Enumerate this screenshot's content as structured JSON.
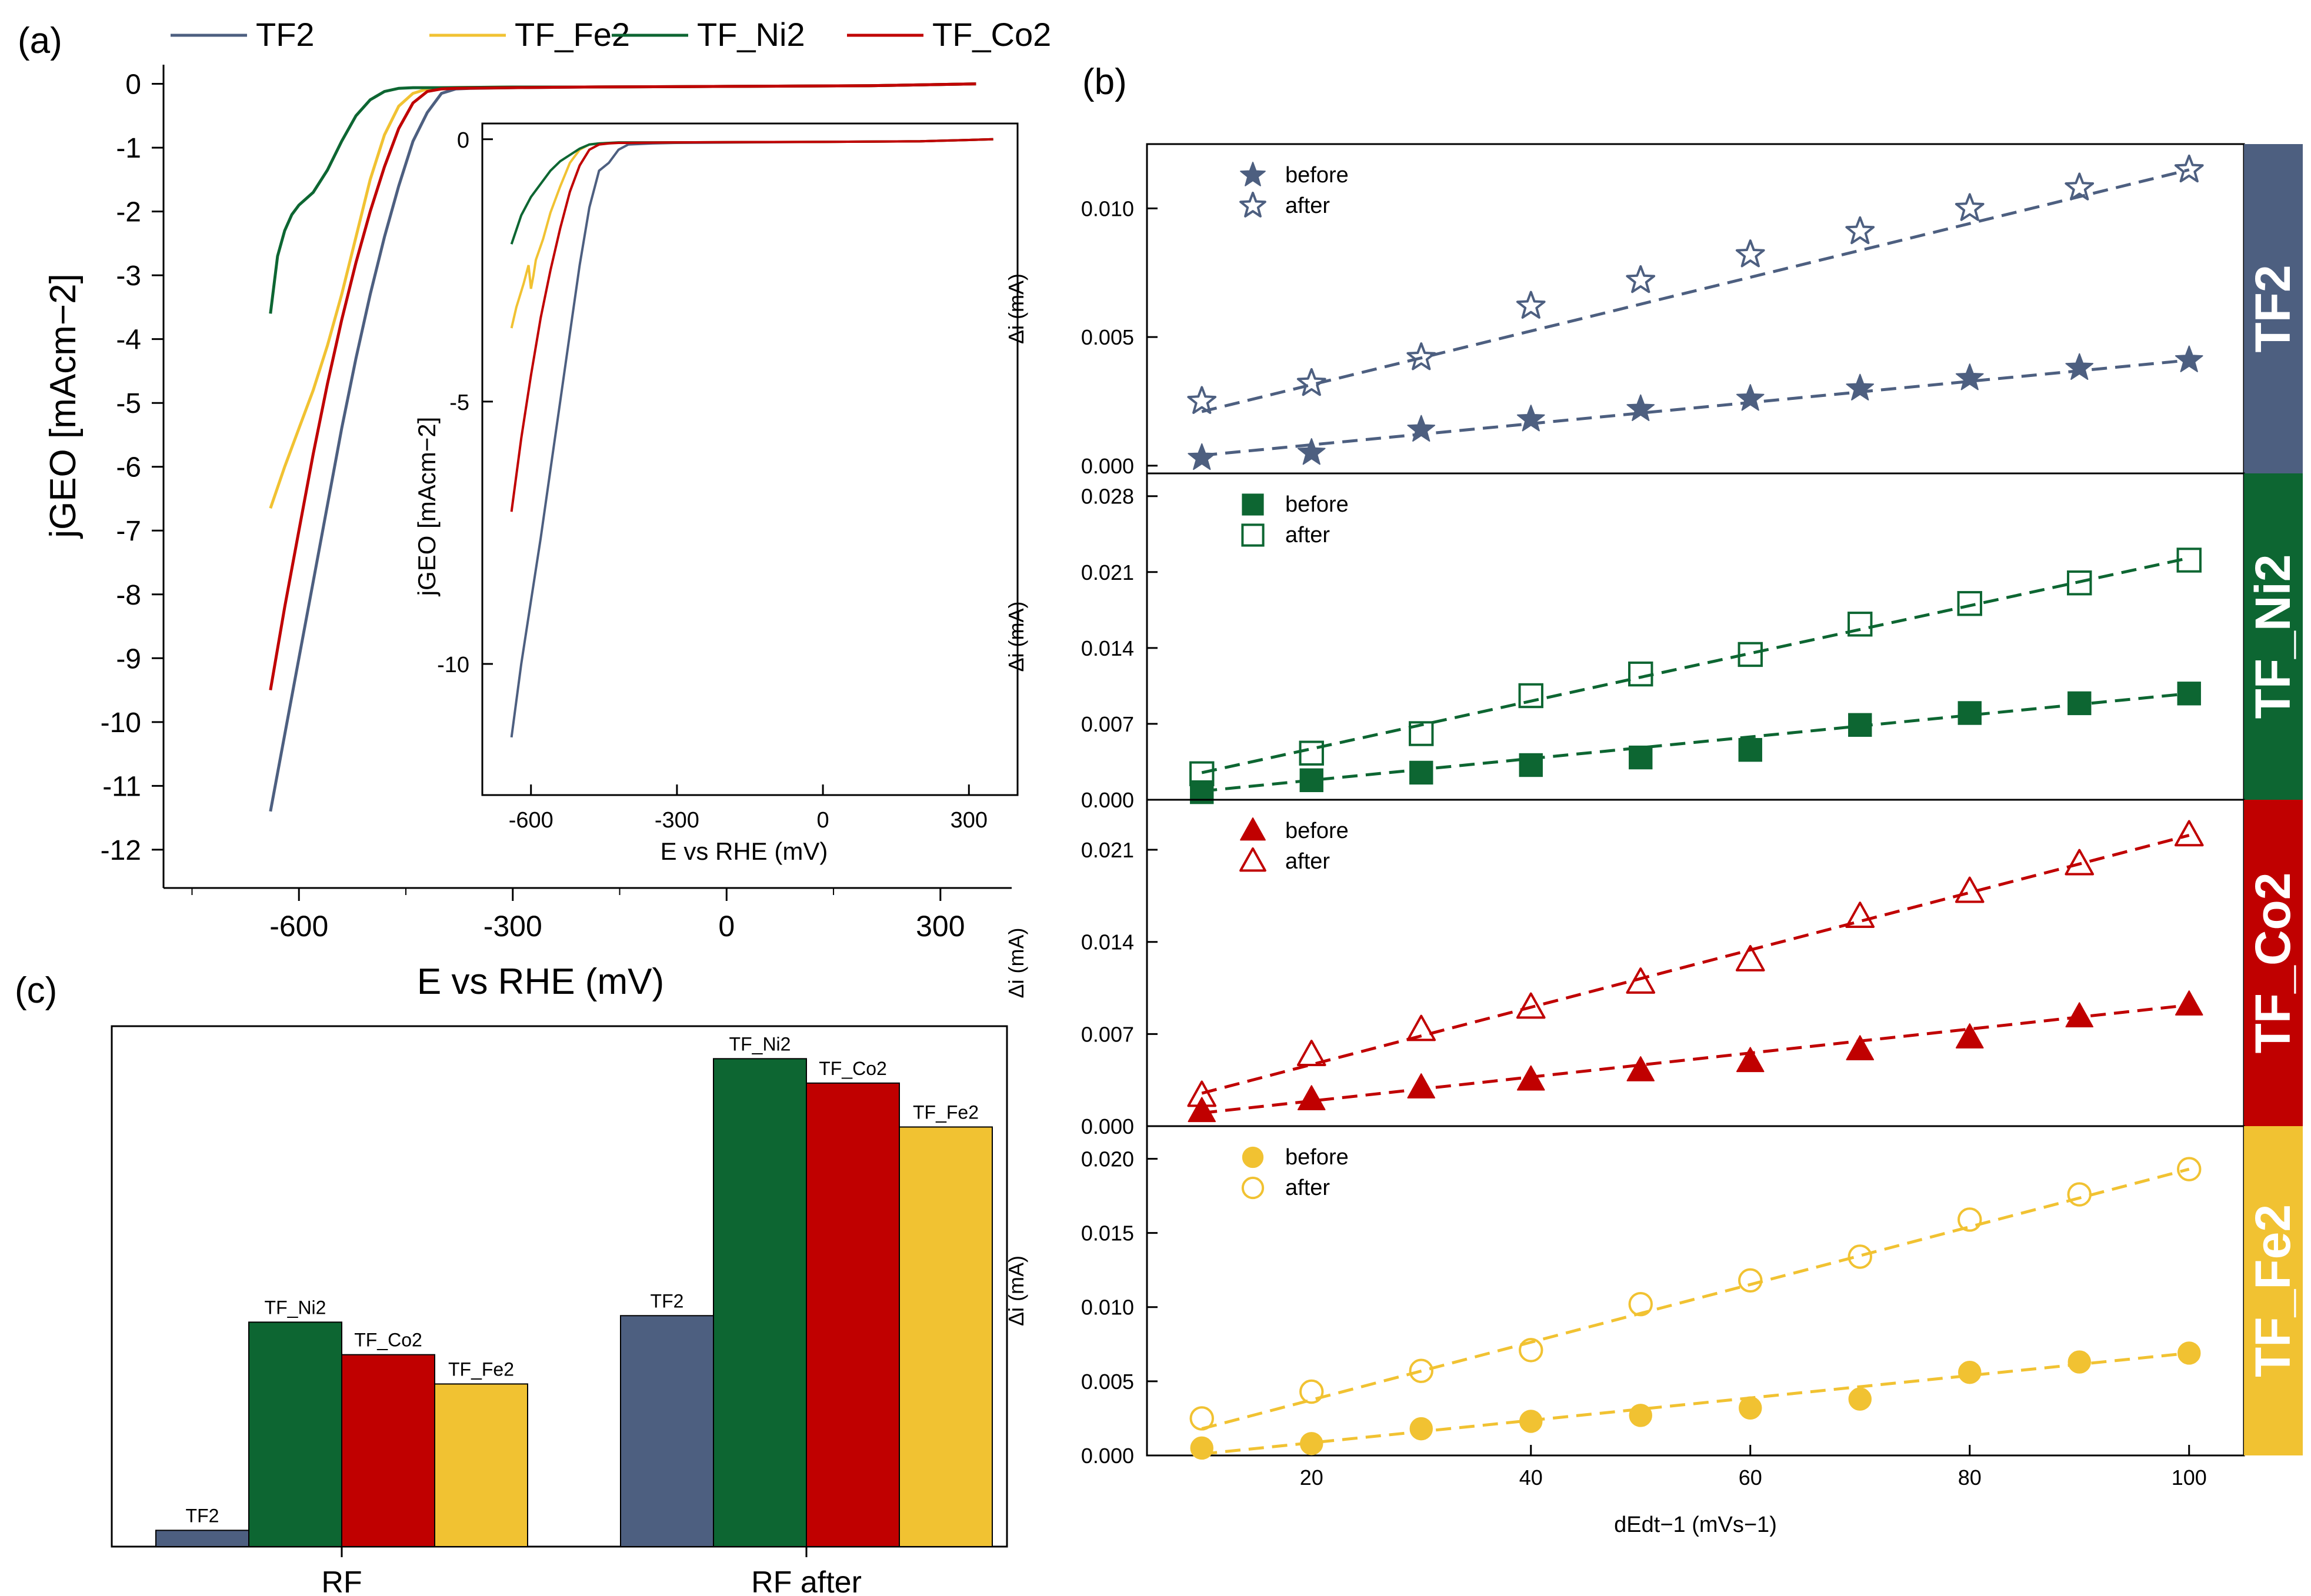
{
  "panel_labels": {
    "a": "(a)",
    "b": "(b)",
    "c": "(c)"
  },
  "colors": {
    "TF2": "#4d5f80",
    "TF_Fe2": "#f1c232",
    "TF_Ni2": "#0d6632",
    "TF_Co2": "#c00000"
  },
  "chart_data": [
    {
      "id": "a_main",
      "type": "line",
      "xlabel": "E vs RHE (mV)",
      "ylabel": "jGEO [mAcm−2]",
      "xlim": [
        -790,
        400
      ],
      "ylim": [
        -12.6,
        0.3
      ],
      "xticks": [
        -600,
        -300,
        0,
        300
      ],
      "yticks": [
        0,
        -1,
        -2,
        -3,
        -4,
        -5,
        -6,
        -7,
        -8,
        -9,
        -10,
        -11,
        -12
      ],
      "legend": [
        "TF2",
        "TF_Fe2",
        "TF_Ni2",
        "TF_Co2"
      ],
      "series": [
        {
          "name": "TF2",
          "x": [
            -640,
            -620,
            -600,
            -580,
            -560,
            -540,
            -520,
            -500,
            -480,
            -460,
            -440,
            -420,
            -400,
            -380,
            -360,
            -300,
            -200,
            0,
            200,
            350
          ],
          "y": [
            -11.4,
            -10.2,
            -9.0,
            -7.8,
            -6.6,
            -5.4,
            -4.3,
            -3.3,
            -2.4,
            -1.6,
            -0.9,
            -0.45,
            -0.15,
            -0.08,
            -0.07,
            -0.06,
            -0.05,
            -0.04,
            -0.03,
            0.0
          ]
        },
        {
          "name": "TF_Fe2",
          "x": [
            -640,
            -620,
            -600,
            -580,
            -560,
            -540,
            -520,
            -500,
            -480,
            -460,
            -440,
            -420,
            -400,
            -300,
            -200,
            0,
            200,
            350
          ],
          "y": [
            -6.65,
            -6.0,
            -5.4,
            -4.8,
            -4.1,
            -3.3,
            -2.4,
            -1.5,
            -0.8,
            -0.35,
            -0.15,
            -0.08,
            -0.06,
            -0.05,
            -0.05,
            -0.04,
            -0.03,
            0.0
          ]
        },
        {
          "name": "TF_Ni2",
          "x": [
            -640,
            -630,
            -620,
            -610,
            -600,
            -580,
            -560,
            -540,
            -520,
            -500,
            -480,
            -460,
            -440,
            -420,
            -400,
            -300,
            -200,
            0,
            200,
            350
          ],
          "y": [
            -3.6,
            -2.7,
            -2.3,
            -2.05,
            -1.9,
            -1.7,
            -1.35,
            -0.9,
            -0.5,
            -0.25,
            -0.12,
            -0.07,
            -0.06,
            -0.06,
            -0.06,
            -0.05,
            -0.05,
            -0.04,
            -0.03,
            0.0
          ]
        },
        {
          "name": "TF_Co2",
          "x": [
            -640,
            -620,
            -600,
            -580,
            -560,
            -540,
            -520,
            -500,
            -480,
            -460,
            -440,
            -420,
            -400,
            -380,
            -300,
            -200,
            0,
            200,
            350
          ],
          "y": [
            -9.5,
            -8.2,
            -7.0,
            -5.8,
            -4.7,
            -3.7,
            -2.8,
            -2.0,
            -1.3,
            -0.7,
            -0.3,
            -0.12,
            -0.08,
            -0.07,
            -0.06,
            -0.05,
            -0.04,
            -0.03,
            0.0
          ]
        }
      ]
    },
    {
      "id": "a_inset",
      "type": "line",
      "xlabel": "E vs RHE (mV)",
      "ylabel": "jGEO [mAcm−2]",
      "xlim": [
        -700,
        400
      ],
      "ylim": [
        -12.5,
        0.3
      ],
      "xticks": [
        -600,
        -300,
        0,
        300
      ],
      "yticks": [
        0,
        -5,
        -10
      ],
      "series": [
        {
          "name": "TF2",
          "x": [
            -640,
            -620,
            -600,
            -580,
            -560,
            -540,
            -520,
            -500,
            -480,
            -460,
            -440,
            -420,
            -400,
            -350,
            -300,
            0,
            200,
            350
          ],
          "y": [
            -11.4,
            -10.0,
            -8.8,
            -7.6,
            -6.3,
            -5.0,
            -3.7,
            -2.4,
            -1.3,
            -0.6,
            -0.45,
            -0.2,
            -0.1,
            -0.08,
            -0.07,
            -0.05,
            -0.04,
            0.0
          ]
        },
        {
          "name": "TF_Fe2",
          "x": [
            -640,
            -630,
            -615,
            -605,
            -600,
            -595,
            -590,
            -575,
            -560,
            -540,
            -520,
            -500,
            -480,
            -460,
            -440,
            -300,
            0,
            200,
            350
          ],
          "y": [
            -3.6,
            -3.2,
            -2.75,
            -2.4,
            -2.85,
            -2.6,
            -2.3,
            -1.9,
            -1.4,
            -0.9,
            -0.45,
            -0.2,
            -0.1,
            -0.08,
            -0.07,
            -0.06,
            -0.05,
            -0.04,
            0.0
          ]
        },
        {
          "name": "TF_Ni2",
          "x": [
            -640,
            -620,
            -600,
            -580,
            -560,
            -540,
            -520,
            -500,
            -480,
            -460,
            -440,
            -420,
            -300,
            0,
            200,
            350
          ],
          "y": [
            -2.0,
            -1.45,
            -1.1,
            -0.85,
            -0.6,
            -0.42,
            -0.3,
            -0.18,
            -0.1,
            -0.08,
            -0.07,
            -0.06,
            -0.06,
            -0.05,
            -0.04,
            0.0
          ]
        },
        {
          "name": "TF_Co2",
          "x": [
            -640,
            -620,
            -600,
            -580,
            -560,
            -540,
            -520,
            -500,
            -480,
            -460,
            -440,
            -420,
            -400,
            -300,
            0,
            200,
            350
          ],
          "y": [
            -7.1,
            -5.7,
            -4.5,
            -3.4,
            -2.5,
            -1.7,
            -1.0,
            -0.5,
            -0.2,
            -0.1,
            -0.08,
            -0.07,
            -0.07,
            -0.06,
            -0.05,
            -0.04,
            0.0
          ]
        }
      ]
    },
    {
      "id": "b_TF2",
      "type": "scatter",
      "side_label": "TF2",
      "color": "#4d5f80",
      "marker": "star",
      "ylabel": "Δi (mA)",
      "xlim": [
        5,
        105
      ],
      "ylim": [
        -0.0003,
        0.0125
      ],
      "yticks": [
        0.0,
        0.005,
        0.01
      ],
      "ytick_labels": [
        "0.000",
        "0.005",
        "0.010"
      ],
      "legend": [
        "before",
        "after"
      ],
      "x": [
        10,
        20,
        30,
        40,
        50,
        60,
        70,
        80,
        90,
        100
      ],
      "series": [
        {
          "name": "before",
          "filled": true,
          "values": [
            0.0003,
            0.0005,
            0.0014,
            0.0018,
            0.0022,
            0.0026,
            0.003,
            0.0034,
            0.0038,
            0.0041
          ],
          "fit": [
            0.0004,
            0.0041
          ]
        },
        {
          "name": "after",
          "filled": false,
          "values": [
            0.0025,
            0.0032,
            0.0042,
            0.0062,
            0.0072,
            0.0082,
            0.0091,
            0.01,
            0.0108,
            0.0115
          ],
          "fit": [
            0.0021,
            0.0115
          ]
        }
      ]
    },
    {
      "id": "b_TF_Ni2",
      "type": "scatter",
      "side_label": "TF_Ni2",
      "color": "#0d6632",
      "marker": "square",
      "ylabel": "Δi (mA)",
      "xlim": [
        5,
        105
      ],
      "ylim": [
        0.0,
        0.0301
      ],
      "yticks": [
        0.0,
        0.007,
        0.014,
        0.021,
        0.028
      ],
      "ytick_labels": [
        "0.000",
        "0.007",
        "0.014",
        "0.021",
        "0.028"
      ],
      "legend": [
        "before",
        "after"
      ],
      "x": [
        10,
        20,
        30,
        40,
        50,
        60,
        70,
        80,
        90,
        100
      ],
      "series": [
        {
          "name": "before",
          "filled": true,
          "values": [
            0.0007,
            0.0018,
            0.0025,
            0.0032,
            0.0039,
            0.0046,
            0.0069,
            0.008,
            0.0089,
            0.0098
          ],
          "fit": [
            0.0008,
            0.0098
          ]
        },
        {
          "name": "after",
          "filled": false,
          "values": [
            0.0024,
            0.0043,
            0.0061,
            0.0096,
            0.0116,
            0.0134,
            0.0162,
            0.0181,
            0.02,
            0.0221
          ],
          "fit": [
            0.0025,
            0.0223
          ]
        }
      ]
    },
    {
      "id": "b_TF_Co2",
      "type": "scatter",
      "side_label": "TF_Co2",
      "color": "#c00000",
      "marker": "triangle",
      "ylabel": "Δi (mA)",
      "xlim": [
        5,
        105
      ],
      "ylim": [
        0.0,
        0.0248
      ],
      "yticks": [
        0.0,
        0.007,
        0.014,
        0.021
      ],
      "ytick_labels": [
        "0.000",
        "0.007",
        "0.014",
        "0.021"
      ],
      "legend": [
        "before",
        "after"
      ],
      "x": [
        10,
        20,
        30,
        40,
        50,
        60,
        70,
        80,
        90,
        100
      ],
      "series": [
        {
          "name": "before",
          "filled": true,
          "values": [
            0.0011,
            0.002,
            0.0029,
            0.0035,
            0.0042,
            0.0049,
            0.0058,
            0.0067,
            0.0083,
            0.0092
          ],
          "fit": [
            0.001,
            0.0092
          ]
        },
        {
          "name": "after",
          "filled": false,
          "values": [
            0.0023,
            0.0054,
            0.0073,
            0.009,
            0.0109,
            0.0126,
            0.0159,
            0.0178,
            0.0199,
            0.0221
          ],
          "fit": [
            0.0025,
            0.0221
          ]
        }
      ]
    },
    {
      "id": "b_TF_Fe2",
      "type": "scatter",
      "side_label": "TF_Fe2",
      "color": "#f1c232",
      "marker": "circle",
      "ylabel": "Δi (mA)",
      "xlabel": "dEdt−1 (mVs−1)",
      "xlim": [
        5,
        105
      ],
      "ylim": [
        0.0,
        0.0222
      ],
      "xticks": [
        20,
        40,
        60,
        80,
        100
      ],
      "yticks": [
        0.0,
        0.005,
        0.01,
        0.015,
        0.02
      ],
      "ytick_labels": [
        "0.000",
        "0.005",
        "0.010",
        "0.015",
        "0.020"
      ],
      "legend": [
        "before",
        "after"
      ],
      "x": [
        10,
        20,
        30,
        40,
        50,
        60,
        70,
        80,
        90,
        100
      ],
      "series": [
        {
          "name": "before",
          "filled": true,
          "values": [
            0.0005,
            0.0008,
            0.0018,
            0.0023,
            0.0027,
            0.0032,
            0.0038,
            0.0056,
            0.0063,
            0.0069
          ],
          "fit": [
            0.0001,
            0.0069
          ]
        },
        {
          "name": "after",
          "filled": false,
          "values": [
            0.0025,
            0.0043,
            0.0057,
            0.0071,
            0.0102,
            0.0118,
            0.0134,
            0.0159,
            0.0176,
            0.0193
          ],
          "fit": [
            0.0018,
            0.0193
          ]
        }
      ]
    },
    {
      "id": "c",
      "type": "bar",
      "categories": [
        "RF",
        "RF after"
      ],
      "ylim": [
        0,
        3.2
      ],
      "series": [
        {
          "name": "TF2",
          "values": [
            0.1,
            1.42
          ]
        },
        {
          "name": "TF_Ni2",
          "values": [
            1.38,
            3.0
          ]
        },
        {
          "name": "TF_Co2",
          "values": [
            1.18,
            2.85
          ]
        },
        {
          "name": "TF_Fe2",
          "values": [
            1.0,
            2.58
          ]
        }
      ]
    }
  ]
}
